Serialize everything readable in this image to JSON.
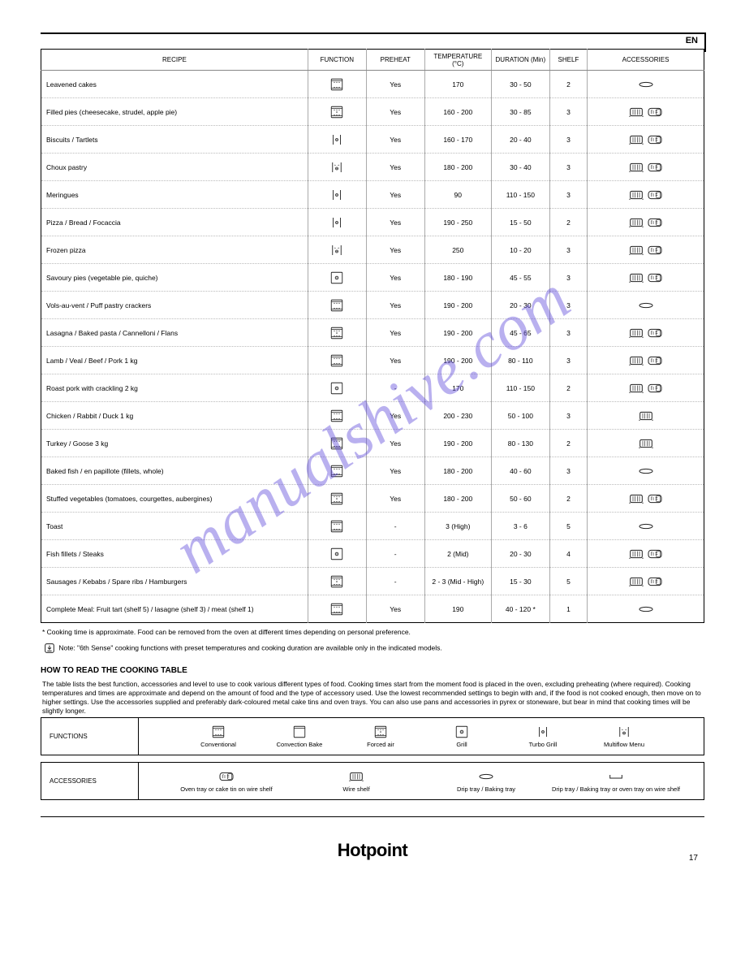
{
  "page": {
    "language_code": "EN",
    "number": "17",
    "brand": "Hotpoint"
  },
  "watermark": "manualshive.com",
  "table": {
    "headers": [
      "RECIPE",
      "FUNCTION",
      "PREHEAT",
      "TEMPERATURE (°C)",
      "DURATION (Min)",
      "SHELF",
      "ACCESSORIES"
    ],
    "rows": [
      {
        "recipe": "Leavened cakes",
        "func": "conv",
        "preheat": "Yes",
        "temp": "170",
        "dur": "30 - 50",
        "shelf": "2",
        "acc": [
          "oval"
        ]
      },
      {
        "recipe": "Filled pies (cheesecake, strudel, apple pie)",
        "func": "conv-fan-full",
        "preheat": "Yes",
        "temp": "160 - 200",
        "dur": "30 - 85",
        "shelf": "3",
        "acc": [
          "rack",
          "tray"
        ]
      },
      {
        "recipe": "Biscuits / Tartlets",
        "func": "fan-narrow",
        "preheat": "Yes",
        "temp": "160 - 170",
        "dur": "20 - 40",
        "shelf": "3",
        "acc": [
          "rack",
          "tray"
        ]
      },
      {
        "recipe": "Choux pastry",
        "func": "fan-full",
        "preheat": "Yes",
        "temp": "180 - 200",
        "dur": "30 - 40",
        "shelf": "3",
        "acc": [
          "rack",
          "tray"
        ]
      },
      {
        "recipe": "Meringues",
        "func": "fan-narrow",
        "preheat": "Yes",
        "temp": "90",
        "dur": "110 - 150",
        "shelf": "3",
        "acc": [
          "rack",
          "tray"
        ]
      },
      {
        "recipe": "Pizza / Bread / Focaccia",
        "func": "fan-narrow",
        "preheat": "Yes",
        "temp": "190 - 250",
        "dur": "15 - 50",
        "shelf": "2",
        "acc": [
          "rack",
          "tray"
        ]
      },
      {
        "recipe": "Frozen pizza",
        "func": "fan-full",
        "preheat": "Yes",
        "temp": "250",
        "dur": "10 - 20",
        "shelf": "3",
        "acc": [
          "rack",
          "tray"
        ]
      },
      {
        "recipe": "Savoury pies (vegetable pie, quiche)",
        "func": "bottom-fan",
        "preheat": "Yes",
        "temp": "180 - 190",
        "dur": "45 - 55",
        "shelf": "3",
        "acc": [
          "rack",
          "tray"
        ]
      },
      {
        "recipe": "Vols-au-vent / Puff pastry crackers",
        "func": "conv",
        "preheat": "Yes",
        "temp": "190 - 200",
        "dur": "20 - 30",
        "shelf": "3",
        "acc": [
          "oval"
        ]
      },
      {
        "recipe": "Lasagna / Baked pasta / Cannelloni / Flans",
        "func": "conv-fan-full",
        "preheat": "Yes",
        "temp": "190 - 200",
        "dur": "45 - 65",
        "shelf": "3",
        "acc": [
          "rack",
          "tray"
        ]
      },
      {
        "recipe": "Lamb / Veal / Beef / Pork 1 kg",
        "func": "conv",
        "preheat": "Yes",
        "temp": "190 - 200",
        "dur": "80 - 110",
        "shelf": "3",
        "acc": [
          "rack",
          "tray"
        ]
      },
      {
        "recipe": "Roast pork with crackling 2 kg",
        "func": "bottom-fan",
        "preheat": "-",
        "temp": "170",
        "dur": "110 - 150",
        "shelf": "2",
        "acc": [
          "rack",
          "tray"
        ]
      },
      {
        "recipe": "Chicken / Rabbit / Duck 1 kg",
        "func": "conv",
        "preheat": "Yes",
        "temp": "200 - 230",
        "dur": "50 - 100",
        "shelf": "3",
        "acc": [
          "rack"
        ]
      },
      {
        "recipe": "Turkey / Goose 3 kg",
        "func": "conv",
        "preheat": "Yes",
        "temp": "190 - 200",
        "dur": "80 - 130",
        "shelf": "2",
        "acc": [
          "rack"
        ]
      },
      {
        "recipe": "Baked fish / en papillote (fillets, whole)",
        "func": "conv",
        "preheat": "Yes",
        "temp": "180 - 200",
        "dur": "40 - 60",
        "shelf": "3",
        "acc": [
          "oval"
        ]
      },
      {
        "recipe": "Stuffed vegetables (tomatoes, courgettes, aubergines)",
        "func": "conv-fan-full",
        "preheat": "Yes",
        "temp": "180 - 200",
        "dur": "50 - 60",
        "shelf": "2",
        "acc": [
          "rack",
          "tray"
        ]
      },
      {
        "recipe": "Toast",
        "func": "conv",
        "preheat": "-",
        "temp": "3 (High)",
        "dur": "3 - 6",
        "shelf": "5",
        "acc": [
          "oval"
        ]
      },
      {
        "recipe": "Fish fillets / Steaks",
        "func": "bottom-fan",
        "preheat": "-",
        "temp": "2 (Mid)",
        "dur": "20 - 30",
        "shelf": "4",
        "acc": [
          "rack",
          "tray"
        ]
      },
      {
        "recipe": "Sausages / Kebabs / Spare ribs / Hamburgers",
        "func": "conv-fan-full",
        "preheat": "-",
        "temp": "2 - 3 (Mid - High)",
        "dur": "15 - 30",
        "shelf": "5",
        "acc": [
          "rack",
          "tray"
        ]
      },
      {
        "recipe": "Complete Meal: Fruit tart (shelf 5) / lasagne (shelf 3) / meat (shelf 1)",
        "func": "conv",
        "preheat": "Yes",
        "temp": "190",
        "dur": "40 - 120 *",
        "shelf": "1",
        "acc": [
          "oval"
        ]
      }
    ]
  },
  "footnote_star": "* Cooking time is approximate. Food can be removed from the oven at different times depending on personal preference.",
  "footnote_icon_line_prefix": "Note: \"6th Sense\" cooking functions with preset temperatures and cooking duration are available only in the indicated models.",
  "footnote_icon": "download",
  "howto": {
    "title": "HOW TO READ THE COOKING TABLE",
    "text": "The table lists the best function, accessories and level to use to cook various different types of food. Cooking times start from the moment food is placed in the oven, excluding preheating (where required). Cooking temperatures and times are approximate and depend on the amount of food and the type of accessory used. Use the lowest recommended settings to begin with and, if the food is not cooked enough, then move on to higher settings. Use the accessories supplied and preferably dark-coloured metal cake tins and oven trays. You can also use pans and accessories in pyrex or stoneware, but bear in mind that cooking times will be slightly longer."
  },
  "legend_functions": {
    "label": "FUNCTIONS",
    "items": [
      {
        "icon": "conv",
        "text": "Conventional"
      },
      {
        "icon": "conv-top",
        "text": "Convection Bake"
      },
      {
        "icon": "conv-fan-full",
        "text": "Forced air"
      },
      {
        "icon": "bottom-fan",
        "text": "Grill"
      },
      {
        "icon": "fan-narrow",
        "text": "Turbo Grill"
      },
      {
        "icon": "fan-full",
        "text": "Multiflow Menu"
      }
    ]
  },
  "legend_accessories": {
    "label": "ACCESSORIES",
    "items": [
      {
        "icon": "tray",
        "text": "Oven tray or cake tin on wire shelf"
      },
      {
        "icon": "rack",
        "text": "Wire shelf"
      },
      {
        "icon": "oval",
        "text": "Drip tray / Baking tray"
      },
      {
        "icon": "pan",
        "text": "Drip tray / Baking tray or oven tray on wire shelf"
      }
    ]
  },
  "icons": {
    "stroke": "#222222",
    "fill": "none"
  }
}
